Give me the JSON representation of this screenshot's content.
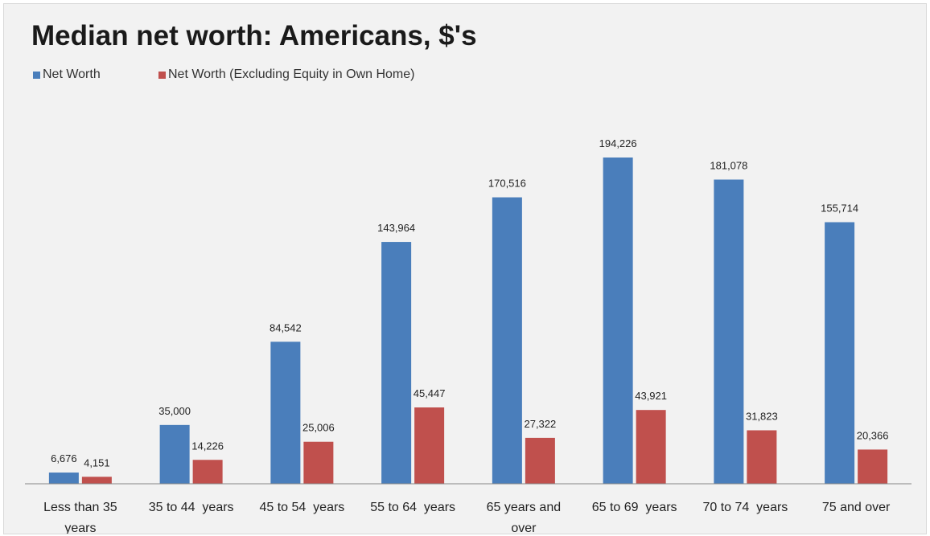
{
  "colors": {
    "net_worth": "#4a7ebb",
    "net_worth_ex_home": "#c0504d",
    "axis": "#868686",
    "text": "#222222"
  },
  "chart_data": {
    "type": "bar",
    "title": "Median net worth: Americans, $'s",
    "xlabel": "",
    "ylabel": "",
    "ylim": [
      0,
      200000
    ],
    "grid": false,
    "legend": "top-left",
    "categories": [
      [
        "Less than 35",
        "years"
      ],
      [
        "35 to 44  years"
      ],
      [
        "45 to 54  years"
      ],
      [
        "55 to 64  years"
      ],
      [
        "65 years and",
        "over"
      ],
      [
        "65 to 69  years"
      ],
      [
        "70 to 74  years"
      ],
      [
        "75 and over"
      ]
    ],
    "series": [
      {
        "name": "Net Worth",
        "values": [
          6676,
          35000,
          84542,
          143964,
          170516,
          194226,
          181078,
          155714
        ],
        "labels": [
          "6,676",
          "35,000",
          "84,542",
          "143,964",
          "170,516",
          "194,226",
          "181,078",
          "155,714"
        ]
      },
      {
        "name": "Net Worth (Excluding Equity in Own Home)",
        "values": [
          4151,
          14226,
          25006,
          45447,
          27322,
          43921,
          31823,
          20366
        ],
        "labels": [
          "4,151",
          "14,226",
          "25,006",
          "45,447",
          "27,322",
          "43,921",
          "31,823",
          "20,366"
        ]
      }
    ]
  }
}
